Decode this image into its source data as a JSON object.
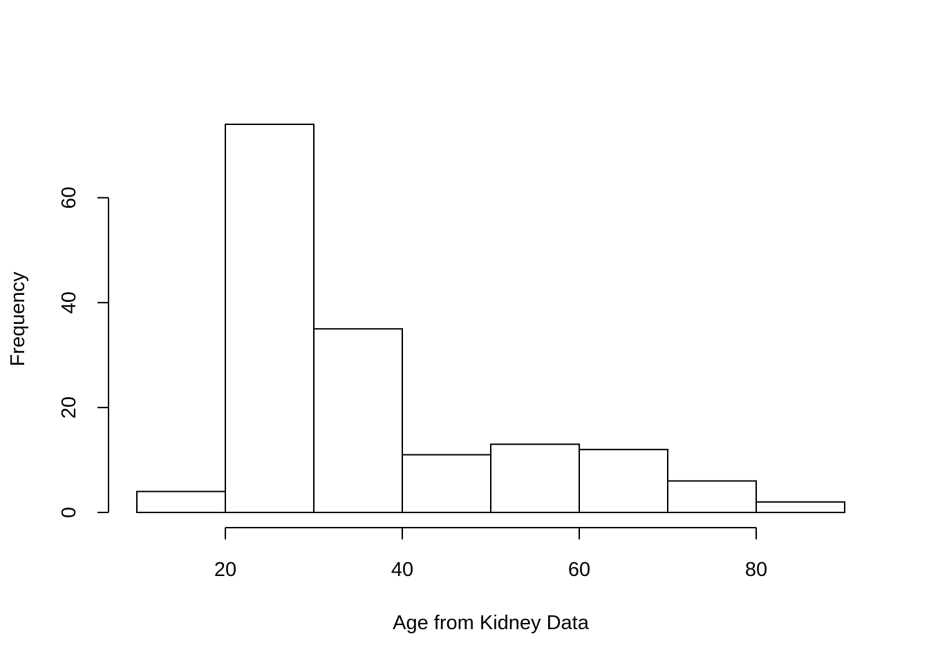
{
  "chart_data": {
    "type": "bar",
    "subtype": "histogram",
    "title": "",
    "xlabel": "Age from Kidney Data",
    "ylabel": "Frequency",
    "bins": [
      {
        "from": 10,
        "to": 20,
        "count": 4
      },
      {
        "from": 20,
        "to": 30,
        "count": 74
      },
      {
        "from": 30,
        "to": 40,
        "count": 35
      },
      {
        "from": 40,
        "to": 50,
        "count": 11
      },
      {
        "from": 50,
        "to": 60,
        "count": 13
      },
      {
        "from": 60,
        "to": 70,
        "count": 12
      },
      {
        "from": 70,
        "to": 80,
        "count": 6
      },
      {
        "from": 80,
        "to": 90,
        "count": 2
      }
    ],
    "xticks": [
      20,
      40,
      60,
      80
    ],
    "xtick_labels": [
      "20",
      "40",
      "60",
      "80"
    ],
    "yticks": [
      0,
      20,
      40,
      60
    ],
    "ytick_labels": [
      "0",
      "20",
      "40",
      "60"
    ],
    "xlim": [
      10,
      90
    ],
    "ylim": [
      0,
      74
    ],
    "grid": false,
    "legend": "none",
    "bar_fill": "#ffffff",
    "bar_stroke": "#000000"
  }
}
